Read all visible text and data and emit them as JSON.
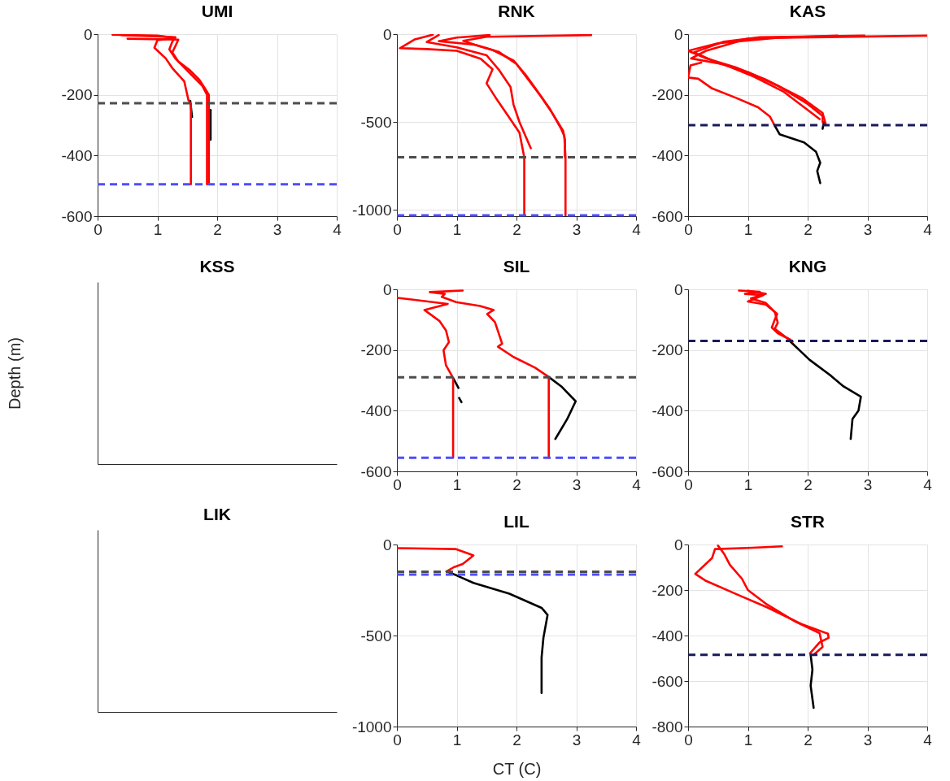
{
  "chart_data": [
    {
      "type": "line",
      "title": "UMI",
      "xlim": [
        0,
        4
      ],
      "xticks": [
        0,
        1,
        2,
        3,
        4
      ],
      "ylim": [
        -600,
        0
      ],
      "yticks": [
        0,
        -200,
        -400,
        -600
      ],
      "grid": true,
      "series": [
        {
          "color": "#000000",
          "x": [
            1.55,
            1.58
          ],
          "values": [
            -220,
            -273
          ]
        },
        {
          "color": "#000000",
          "x": [
            1.89,
            1.89
          ],
          "values": [
            -250,
            -348
          ]
        },
        {
          "color": "#ff0000",
          "x": [
            0.25,
            1.0,
            1.3,
            1.0,
            0.95,
            1.14,
            1.25,
            1.45,
            1.52,
            1.56,
            1.56
          ],
          "values": [
            -2,
            -5,
            -12,
            -20,
            -45,
            -80,
            -112,
            -156,
            -218,
            -230,
            -495
          ]
        },
        {
          "color": "#ff0000",
          "x": [
            0.4,
            1.3,
            1.25,
            1.2,
            1.3,
            1.45,
            1.6,
            1.75,
            1.83,
            1.83
          ],
          "values": [
            -3,
            -10,
            -25,
            -50,
            -80,
            -110,
            -140,
            -170,
            -200,
            -495
          ]
        },
        {
          "color": "#ff0000",
          "x": [
            0.5,
            1.35,
            1.3,
            1.25,
            1.35,
            1.55,
            1.7,
            1.8,
            1.86,
            1.86
          ],
          "values": [
            -15,
            -18,
            -40,
            -60,
            -90,
            -120,
            -150,
            -180,
            -200,
            -495
          ]
        }
      ],
      "ref_lines": [
        {
          "axis": "y",
          "value": -228,
          "color": "#4d4d4d",
          "line_style": "dashed"
        },
        {
          "axis": "y",
          "value": -495,
          "color": "#4d4dff",
          "line_style": "dashed"
        }
      ]
    },
    {
      "type": "line",
      "title": "RNK",
      "xlim": [
        0,
        4
      ],
      "xticks": [
        0,
        1,
        2,
        3,
        4
      ],
      "ylim": [
        -1035,
        0
      ],
      "yticks": [
        0,
        -500,
        -1000
      ],
      "grid": true,
      "series": [
        {
          "color": "#ff0000",
          "x": [
            3.25,
            1.5,
            1.11,
            1.3,
            1.6,
            1.95,
            2.15,
            2.3,
            2.55,
            2.75,
            2.8,
            2.82,
            2.82
          ],
          "values": [
            -5,
            -15,
            -38,
            -60,
            -90,
            -150,
            -230,
            -300,
            -420,
            -540,
            -580,
            -700,
            -1030
          ]
        },
        {
          "color": "#ff0000",
          "x": [
            1.55,
            1.0,
            0.7,
            1.3,
            1.7,
            2.0,
            2.2,
            2.4,
            2.6,
            2.78,
            2.81,
            2.81
          ],
          "values": [
            -5,
            -20,
            -40,
            -60,
            -100,
            -170,
            -260,
            -350,
            -450,
            -550,
            -600,
            -700
          ]
        },
        {
          "color": "#ff0000",
          "x": [
            0.6,
            0.3,
            0.05,
            0.5,
            1.0,
            1.4,
            1.6,
            1.5,
            1.65,
            1.85,
            2.05,
            2.13,
            2.13
          ],
          "values": [
            -3,
            -30,
            -80,
            -85,
            -95,
            -140,
            -200,
            -280,
            -360,
            -460,
            -560,
            -700,
            -1030
          ]
        },
        {
          "color": "#ff0000",
          "x": [
            0.7,
            0.5,
            1.0,
            1.5,
            1.7,
            1.9,
            1.95,
            2.05,
            2.24
          ],
          "values": [
            -5,
            -45,
            -75,
            -120,
            -200,
            -300,
            -400,
            -500,
            -649
          ]
        }
      ],
      "ref_lines": [
        {
          "axis": "y",
          "value": -700,
          "color": "#4d4d4d",
          "line_style": "dashed"
        },
        {
          "axis": "y",
          "value": -1030,
          "color": "#4d4dff",
          "line_style": "dashed"
        }
      ]
    },
    {
      "type": "line",
      "title": "KAS",
      "xlim": [
        0,
        4
      ],
      "xticks": [
        0,
        1,
        2,
        3,
        4
      ],
      "ylim": [
        -600,
        0
      ],
      "yticks": [
        0,
        -200,
        -400,
        -600
      ],
      "grid": true,
      "series": [
        {
          "color": "#000000",
          "x": [
            1.44,
            1.53,
            1.94,
            2.14,
            2.21,
            2.16,
            2.21
          ],
          "values": [
            -298,
            -330,
            -357,
            -388,
            -424,
            -451,
            -491
          ]
        },
        {
          "color": "#000000",
          "x": [
            2.27,
            2.25
          ],
          "values": [
            -290,
            -312
          ]
        },
        {
          "color": "#ff0000",
          "x": [
            4.0,
            1.5,
            0.5,
            0.0,
            0.3,
            0.8,
            1.3,
            1.9,
            2.25,
            2.3
          ],
          "values": [
            -5,
            -12,
            -30,
            -55,
            -80,
            -110,
            -150,
            -210,
            -260,
            -295
          ]
        },
        {
          "color": "#ff0000",
          "x": [
            2.95,
            1.2,
            0.6,
            0.1,
            0.5,
            1.0,
            1.5,
            2.0,
            2.25,
            2.25
          ],
          "values": [
            -5,
            -10,
            -25,
            -60,
            -95,
            -125,
            -170,
            -230,
            -270,
            -290
          ]
        },
        {
          "color": "#ff0000",
          "x": [
            2.5,
            1.0,
            0.3,
            0.05,
            0.6,
            1.1,
            1.6,
            2.0,
            2.2
          ],
          "values": [
            -5,
            -15,
            -55,
            -80,
            -100,
            -140,
            -190,
            -250,
            -280
          ]
        },
        {
          "color": "#ff0000",
          "x": [
            0.22,
            0.04,
            0.0,
            0.17,
            0.4,
            0.8,
            1.17,
            1.37,
            1.44
          ],
          "values": [
            -94,
            -103,
            -143,
            -147,
            -179,
            -210,
            -241,
            -272,
            -298
          ]
        }
      ],
      "ref_lines": [
        {
          "axis": "y",
          "value": -300,
          "color": "#1a1a5a",
          "line_style": "dashed"
        }
      ]
    },
    {
      "type": "other",
      "title": "KSS",
      "ylabel": "Depth (m)"
    },
    {
      "type": "line",
      "title": "SIL",
      "xlim": [
        0,
        4
      ],
      "xticks": [
        0,
        1,
        2,
        3,
        4
      ],
      "ylim": [
        -600,
        0
      ],
      "yticks": [
        0,
        -200,
        -400,
        -600
      ],
      "grid": true,
      "series": [
        {
          "color": "#000000",
          "x": [
            0.94,
            1.03
          ],
          "values": [
            -292,
            -325
          ]
        },
        {
          "color": "#000000",
          "x": [
            1.04,
            1.08
          ],
          "values": [
            -358,
            -372
          ]
        },
        {
          "color": "#000000",
          "x": [
            2.54,
            2.75,
            2.99,
            2.85,
            2.72,
            2.65
          ],
          "values": [
            -289,
            -320,
            -369,
            -427,
            -470,
            -493
          ]
        },
        {
          "color": "#ff0000",
          "x": [
            0.01,
            0.85,
            0.46,
            0.71,
            0.82,
            0.87,
            0.78,
            0.82,
            0.94,
            0.94
          ],
          "values": [
            -28,
            -48,
            -68,
            -104,
            -135,
            -174,
            -201,
            -250,
            -292,
            -555
          ]
        },
        {
          "color": "#ff0000",
          "x": [
            1.1,
            0.55,
            0.8,
            0.75,
            0.99,
            1.39,
            1.62,
            1.51,
            1.64,
            1.76,
            1.69,
            1.95,
            2.31,
            2.54,
            2.54
          ],
          "values": [
            -4,
            -9,
            -15,
            -25,
            -42,
            -55,
            -68,
            -81,
            -108,
            -179,
            -189,
            -223,
            -258,
            -289,
            -555
          ]
        }
      ],
      "ref_lines": [
        {
          "axis": "y",
          "value": -290,
          "color": "#4d4d4d",
          "line_style": "dashed"
        },
        {
          "axis": "y",
          "value": -555,
          "color": "#4d4dff",
          "line_style": "dashed"
        }
      ]
    },
    {
      "type": "line",
      "title": "KNG",
      "xlim": [
        0,
        4
      ],
      "xticks": [
        0,
        1,
        2,
        3,
        4
      ],
      "ylim": [
        -600,
        0
      ],
      "yticks": [
        0,
        -200,
        -400,
        -600
      ],
      "grid": true,
      "series": [
        {
          "color": "#000000",
          "x": [
            1.7,
            2.03,
            2.39,
            2.6,
            2.89,
            2.85,
            2.75,
            2.72
          ],
          "values": [
            -170,
            -232,
            -285,
            -320,
            -354,
            -400,
            -427,
            -493
          ]
        },
        {
          "color": "#ff0000",
          "x": [
            0.85,
            1.2,
            0.95,
            1.26,
            1.0,
            1.3,
            1.49,
            1.45,
            1.4,
            1.5,
            1.71
          ],
          "values": [
            -4,
            -8,
            -15,
            -19,
            -40,
            -50,
            -81,
            -100,
            -126,
            -145,
            -166
          ]
        },
        {
          "color": "#ff0000",
          "x": [
            1.0,
            1.3,
            1.05,
            1.3,
            1.45,
            1.5,
            1.45,
            1.65,
            1.75
          ],
          "values": [
            -5,
            -15,
            -30,
            -45,
            -75,
            -110,
            -130,
            -160,
            -172
          ]
        }
      ],
      "ref_lines": [
        {
          "axis": "y",
          "value": -170,
          "color": "#1a1a5a",
          "line_style": "dashed"
        }
      ]
    },
    {
      "type": "other",
      "title": "LIK"
    },
    {
      "type": "line",
      "title": "LIL",
      "xlabel": "CT (C)",
      "xlim": [
        0,
        4
      ],
      "xticks": [
        0,
        1,
        2,
        3,
        4
      ],
      "ylim": [
        -1000,
        0
      ],
      "yticks": [
        0,
        -500,
        -1000
      ],
      "grid": true,
      "series": [
        {
          "color": "#000000",
          "x": [
            0.83,
            1.0,
            1.28,
            1.88,
            2.42,
            2.52,
            2.45,
            2.42,
            2.42
          ],
          "values": [
            -148,
            -170,
            -211,
            -270,
            -348,
            -387,
            -514,
            -620,
            -816
          ]
        },
        {
          "color": "#ff0000",
          "x": [
            0,
            0.98,
            1.2,
            1.28,
            1.1,
            0.95,
            0.83
          ],
          "values": [
            -20,
            -25,
            -50,
            -60,
            -107,
            -125,
            -148
          ]
        }
      ],
      "ref_lines": [
        {
          "axis": "y",
          "value": -150,
          "color": "#4d4d4d",
          "line_style": "dashed"
        },
        {
          "axis": "y",
          "value": -165,
          "color": "#4d4dff",
          "line_style": "dashed"
        }
      ]
    },
    {
      "type": "line",
      "title": "STR",
      "xlim": [
        0,
        4
      ],
      "xticks": [
        0,
        1,
        2,
        3,
        4
      ],
      "ylim": [
        -800,
        0
      ],
      "yticks": [
        0,
        -200,
        -400,
        -600,
        -800
      ],
      "grid": true,
      "series": [
        {
          "color": "#000000",
          "x": [
            2.05,
            2.08,
            2.05,
            2.1
          ],
          "values": [
            -485,
            -550,
            -620,
            -718
          ]
        },
        {
          "color": "#ff0000",
          "x": [
            1.57,
            1.0,
            0.45,
            0.4,
            0.12,
            0.3,
            0.84,
            1.32,
            1.9,
            2.34,
            2.35,
            2.2,
            2.04,
            2.05
          ],
          "values": [
            -8,
            -15,
            -20,
            -60,
            -129,
            -160,
            -222,
            -276,
            -350,
            -392,
            -410,
            -430,
            -478,
            -485
          ]
        },
        {
          "color": "#ff0000",
          "x": [
            0.5,
            0.6,
            0.7,
            0.9,
            1.0,
            1.3,
            1.8,
            2.2,
            2.25,
            2.1
          ],
          "values": [
            -5,
            -40,
            -90,
            -150,
            -200,
            -260,
            -340,
            -390,
            -450,
            -485
          ]
        }
      ],
      "ref_lines": [
        {
          "axis": "y",
          "value": -485,
          "color": "#1a1a5a",
          "line_style": "dashed"
        }
      ]
    }
  ]
}
